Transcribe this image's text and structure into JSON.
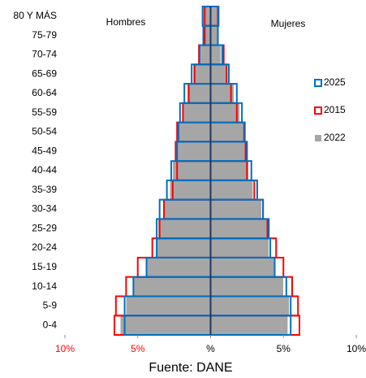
{
  "chart_data": {
    "type": "pyramid",
    "left_label": "Hombres",
    "right_label": "Mujeres",
    "source": "Fuente: DANE",
    "categories": [
      "80 Y MÁS",
      "75-79",
      "70-74",
      "65-69",
      "60-64",
      "55-59",
      "50-54",
      "45-49",
      "40-44",
      "35-39",
      "30-34",
      "25-29",
      "20-24",
      "15-19",
      "10-14",
      "5-9",
      "0-4"
    ],
    "series": [
      {
        "name": "2022",
        "color": "#a6a6a6",
        "style": "fill",
        "men": [
          0.55,
          0.5,
          0.7,
          1.2,
          1.6,
          1.9,
          2.2,
          2.3,
          2.6,
          2.8,
          3.2,
          3.6,
          3.7,
          4.4,
          5.3,
          5.8,
          6.2
        ],
        "women": [
          0.6,
          0.5,
          0.7,
          1.1,
          1.6,
          2.0,
          2.3,
          2.4,
          2.6,
          2.9,
          3.5,
          3.9,
          4.0,
          4.4,
          5.0,
          5.4,
          5.3
        ]
      },
      {
        "name": "2015",
        "color": "#ff0000",
        "style": "outline",
        "men": [
          0.4,
          0.4,
          0.8,
          1.1,
          1.5,
          1.9,
          2.3,
          2.4,
          2.3,
          2.6,
          3.2,
          3.5,
          4.0,
          5.0,
          5.8,
          6.5,
          6.6
        ],
        "women": [
          0.5,
          0.5,
          0.9,
          1.1,
          1.4,
          1.8,
          2.3,
          2.4,
          2.5,
          3.0,
          3.6,
          3.9,
          4.5,
          5.0,
          5.6,
          6.0,
          6.1
        ]
      },
      {
        "name": "2025",
        "color": "#0070c0",
        "style": "outline",
        "men": [
          0.55,
          0.5,
          0.75,
          1.3,
          1.8,
          2.1,
          2.2,
          2.3,
          2.7,
          3.0,
          3.5,
          3.7,
          3.7,
          4.4,
          5.3,
          5.9,
          5.9
        ],
        "women": [
          0.55,
          0.5,
          0.8,
          1.25,
          1.8,
          2.15,
          2.35,
          2.5,
          2.8,
          3.2,
          3.6,
          4.0,
          4.1,
          4.4,
          5.2,
          5.5,
          5.5
        ]
      }
    ],
    "legend_order": [
      2,
      1,
      0
    ],
    "xlim": [
      -10,
      10
    ],
    "xticks": [
      {
        "value": -10,
        "label": "10%"
      },
      {
        "value": -5,
        "label": "5%"
      },
      {
        "value": 0,
        "label": "%"
      },
      {
        "value": 5,
        "label": "5%"
      },
      {
        "value": 10,
        "label": "10%"
      }
    ],
    "negative_tick_color": "#ff0000"
  }
}
